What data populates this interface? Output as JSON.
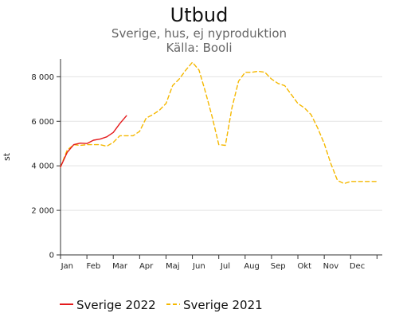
{
  "chart_data": {
    "type": "line",
    "title": "Utbud",
    "subtitle_1": "Sverige, hus, ej nyproduktion",
    "subtitle_2": "Källa: Booli",
    "ylabel": "st",
    "xlabel": "",
    "ylim": [
      0,
      8800
    ],
    "yticks": [
      0,
      2000,
      4000,
      6000,
      8000
    ],
    "ytick_labels": [
      "0",
      "2 000",
      "4 000",
      "6 000",
      "8 000"
    ],
    "xlim": [
      0,
      12.2
    ],
    "months": [
      "Jan",
      "Feb",
      "Mar",
      "Apr",
      "Maj",
      "Jun",
      "Jul",
      "Aug",
      "Sep",
      "Okt",
      "Nov",
      "Dec"
    ],
    "grid": "horizontal",
    "legend_position": "bottom",
    "series": [
      {
        "name": "Sverige 2022",
        "color": "#e41a1c",
        "dash": "solid",
        "x": [
          0,
          0.25,
          0.5,
          0.75,
          1.0,
          1.25,
          1.5,
          1.75,
          2.0,
          2.25,
          2.5
        ],
        "y": [
          3950,
          4600,
          4950,
          5020,
          5000,
          5150,
          5200,
          5300,
          5500,
          5900,
          6250
        ]
      },
      {
        "name": "Sverige 2021",
        "color": "#f5b800",
        "dash": "dashed",
        "x": [
          0,
          0.25,
          0.5,
          0.75,
          1.0,
          1.25,
          1.5,
          1.75,
          2.0,
          2.25,
          2.5,
          2.75,
          3.0,
          3.25,
          3.5,
          3.75,
          4.0,
          4.25,
          4.5,
          4.75,
          5.0,
          5.25,
          5.5,
          5.75,
          6.0,
          6.25,
          6.5,
          6.75,
          7.0,
          7.25,
          7.5,
          7.75,
          8.0,
          8.25,
          8.5,
          8.75,
          9.0,
          9.25,
          9.5,
          9.75,
          10.0,
          10.25,
          10.5,
          10.75,
          11.0,
          11.25,
          11.5,
          11.75,
          12.0
        ],
        "y": [
          3950,
          4700,
          4950,
          4920,
          4950,
          4950,
          4950,
          4880,
          5050,
          5350,
          5350,
          5350,
          5550,
          6150,
          6300,
          6500,
          6800,
          7600,
          7900,
          8300,
          8650,
          8300,
          7300,
          6200,
          4950,
          4920,
          6600,
          7800,
          8200,
          8200,
          8250,
          8200,
          7900,
          7700,
          7600,
          7200,
          6800,
          6600,
          6300,
          5700,
          5000,
          4100,
          3350,
          3200,
          3300,
          3300,
          3300,
          3300,
          3300
        ]
      }
    ]
  }
}
